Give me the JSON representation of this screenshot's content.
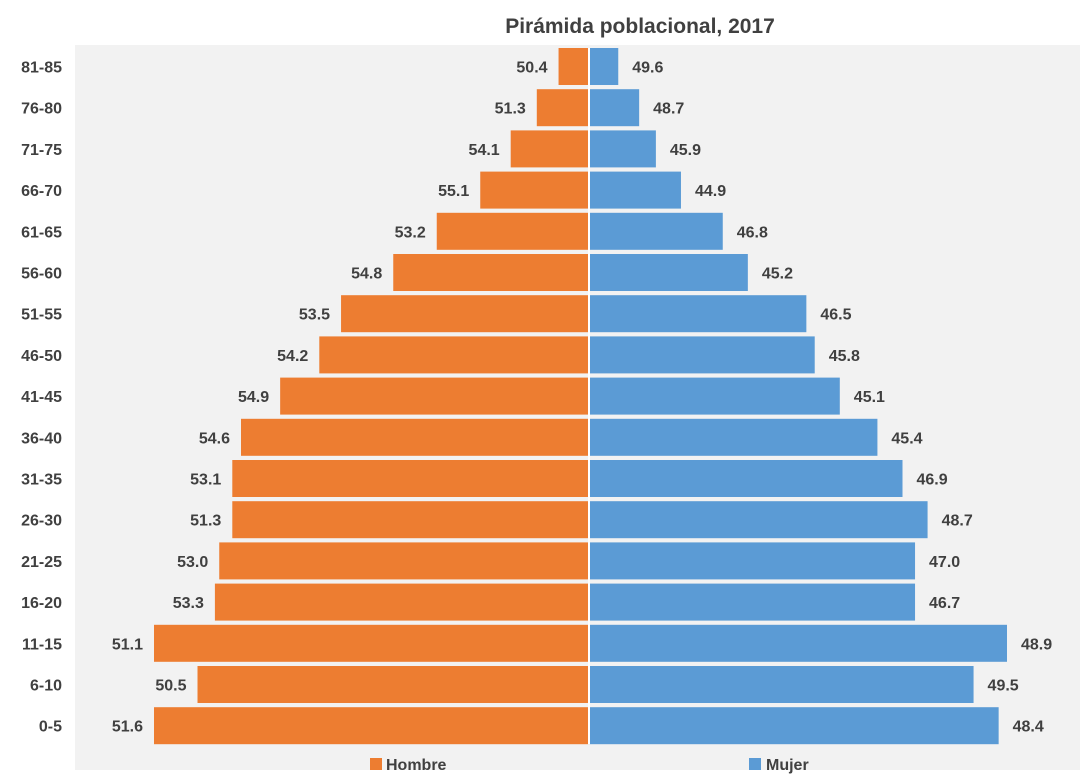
{
  "chart_data": {
    "type": "bar",
    "orientation": "horizontal",
    "layout": "population-pyramid",
    "title": "Pirámida poblacional, 2017",
    "categories": [
      "81-85",
      "76-80",
      "71-75",
      "66-70",
      "61-65",
      "56-60",
      "51-55",
      "46-50",
      "41-45",
      "36-40",
      "31-35",
      "26-30",
      "21-25",
      "16-20",
      "11-15",
      "6-10",
      "0-5"
    ],
    "series": [
      {
        "name": "Hombre",
        "side": "left",
        "color": "#ED7D31",
        "labels": [
          "50.4",
          "51.3",
          "54.1",
          "55.1",
          "53.2",
          "54.8",
          "53.5",
          "54.2",
          "54.9",
          "54.6",
          "53.1",
          "51.3",
          "53.0",
          "53.3",
          "51.1",
          "50.5",
          "51.6"
        ],
        "values": [
          50.4,
          51.3,
          54.1,
          55.1,
          53.2,
          54.8,
          53.5,
          54.2,
          54.9,
          54.6,
          53.1,
          51.3,
          53.0,
          53.3,
          51.1,
          50.5,
          51.6
        ],
        "bar_extent": [
          0.07,
          0.12,
          0.18,
          0.25,
          0.35,
          0.45,
          0.57,
          0.62,
          0.71,
          0.8,
          0.82,
          0.82,
          0.85,
          0.86,
          1.0,
          0.9,
          1.0
        ]
      },
      {
        "name": "Mujer",
        "side": "right",
        "color": "#5B9BD5",
        "labels": [
          "49.6",
          "48.7",
          "45.9",
          "44.9",
          "46.8",
          "45.2",
          "46.5",
          "45.8",
          "45.1",
          "45.4",
          "46.9",
          "48.7",
          "47.0",
          "46.7",
          "48.9",
          "49.5",
          "48.4"
        ],
        "values": [
          49.6,
          48.7,
          45.9,
          44.9,
          46.8,
          45.2,
          46.5,
          45.8,
          45.1,
          45.4,
          46.9,
          48.7,
          47.0,
          46.7,
          48.9,
          49.5,
          48.4
        ],
        "bar_extent": [
          0.07,
          0.12,
          0.16,
          0.22,
          0.32,
          0.38,
          0.52,
          0.54,
          0.6,
          0.69,
          0.75,
          0.81,
          0.78,
          0.78,
          1.0,
          0.92,
          0.98
        ]
      }
    ],
    "legend_position": "bottom",
    "grid": false,
    "background": "#F2F2F2"
  }
}
